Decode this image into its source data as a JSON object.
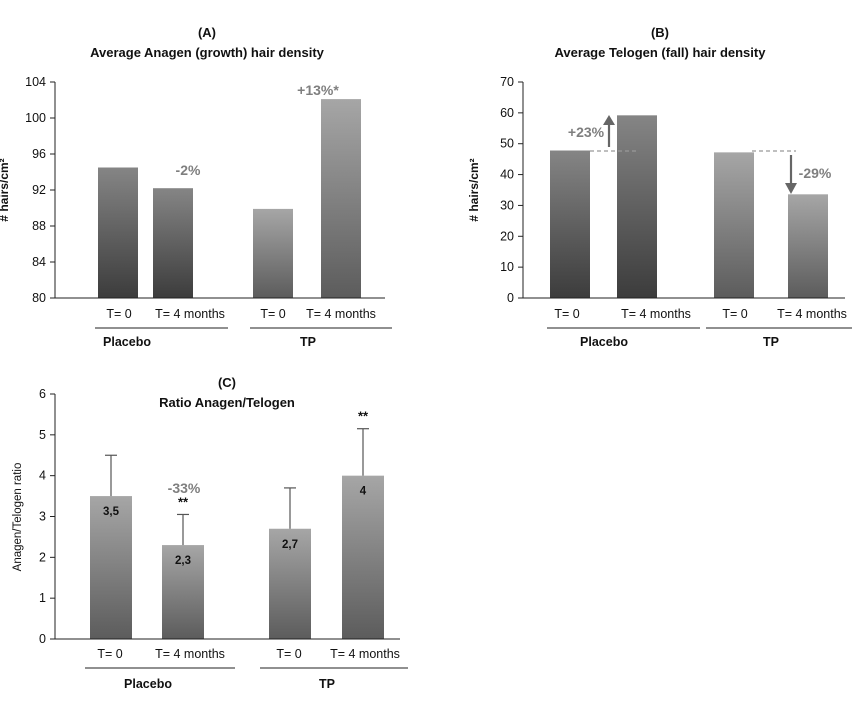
{
  "chart_data": [
    {
      "id": "A",
      "type": "bar",
      "panel_label": "(A)",
      "title": "Average Anagen (growth) hair density",
      "ylabel": "# hairs/cm²",
      "ylim": [
        80,
        104
      ],
      "yticks": [
        "80",
        "84",
        "88",
        "92",
        "96",
        "100",
        "104"
      ],
      "categories": [
        "T= 0",
        "T= 4 months",
        "T= 0",
        "T= 4 months"
      ],
      "groups": [
        "Placebo",
        "TP"
      ],
      "values": [
        94.5,
        92.2,
        89.9,
        102.1
      ],
      "annotations": [
        "-2%",
        "+13%*"
      ]
    },
    {
      "id": "B",
      "type": "bar",
      "panel_label": "(B)",
      "title": "Average Telogen (fall) hair density",
      "ylabel": "# hairs/cm²",
      "ylim": [
        0,
        70
      ],
      "yticks": [
        "0",
        "10",
        "20",
        "30",
        "40",
        "50",
        "60",
        "70"
      ],
      "categories": [
        "T= 0",
        "T= 4 months",
        "T= 0",
        "T= 4 months"
      ],
      "groups": [
        "Placebo",
        "TP"
      ],
      "values": [
        47.8,
        59.2,
        47.2,
        33.6
      ],
      "annotations": [
        "+23%",
        "-29%"
      ]
    },
    {
      "id": "C",
      "type": "bar",
      "panel_label": "(C)",
      "title": "Ratio Anagen/Telogen",
      "ylabel": "Anagen/Telogen ratio",
      "ylim": [
        0,
        6
      ],
      "yticks": [
        "0",
        "1",
        "2",
        "3",
        "4",
        "5",
        "6"
      ],
      "categories": [
        "T= 0",
        "T= 4 months",
        "T= 0",
        "T= 4 months"
      ],
      "groups": [
        "Placebo",
        "TP"
      ],
      "values": [
        3.5,
        2.3,
        2.7,
        4.0
      ],
      "errors": [
        1.0,
        0.75,
        1.0,
        1.15
      ],
      "data_labels": [
        "3,5",
        "2,3",
        "2,7",
        "4"
      ],
      "significance": [
        "",
        "**",
        "",
        "**"
      ],
      "annotations": [
        "-33%"
      ]
    }
  ],
  "colors": {
    "bar_dark_top": "#858585",
    "bar_dark_bottom": "#3c3c3c",
    "bar_light_top": "#a6a6a6",
    "bar_light_bottom": "#5c5c5c",
    "annotation": "#7f7f7f",
    "arrow": "#666666",
    "dashed": "#999999"
  }
}
